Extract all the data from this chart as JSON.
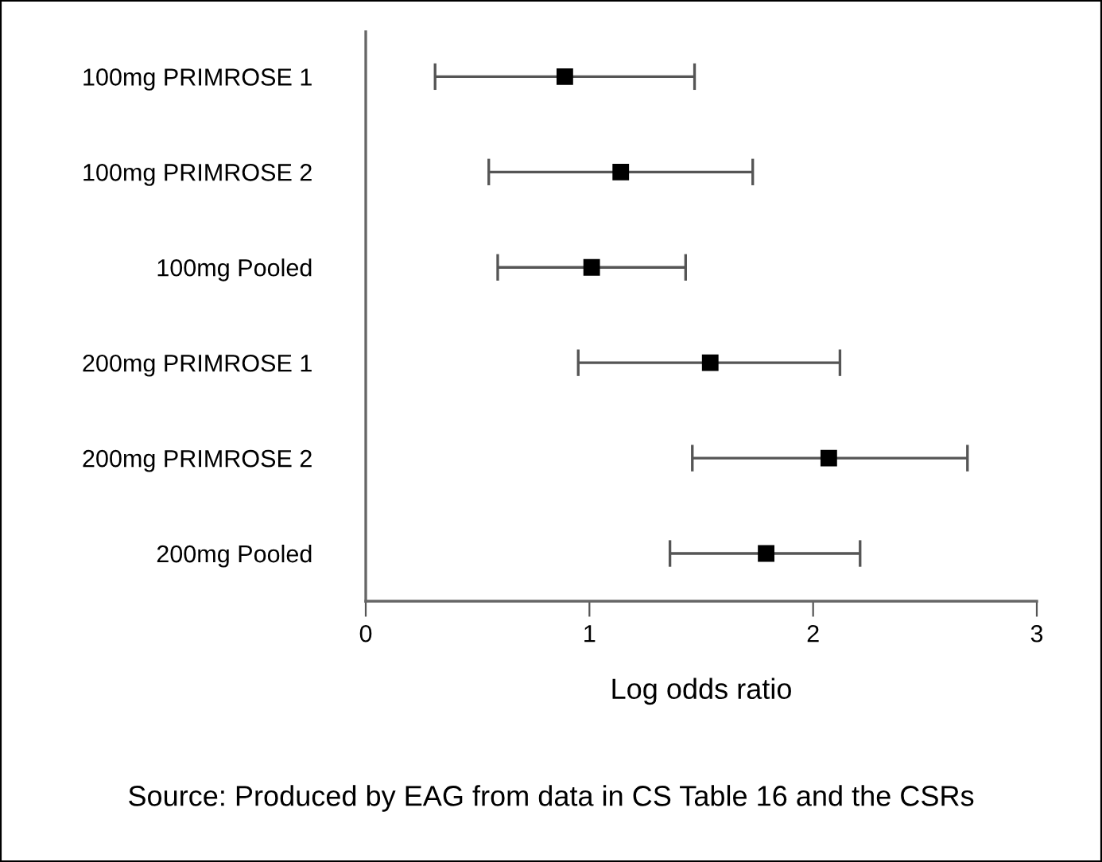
{
  "chart_data": {
    "type": "scatter",
    "orientation": "horizontal",
    "marker": "square",
    "categories": [
      "100mg PRIMROSE 1",
      "100mg PRIMROSE 2",
      "100mg Pooled",
      "200mg PRIMROSE 1",
      "200mg PRIMROSE 2",
      "200mg Pooled"
    ],
    "values": [
      0.89,
      1.14,
      1.01,
      1.54,
      2.07,
      1.79
    ],
    "errors": [
      [
        0.31,
        1.47
      ],
      [
        0.55,
        1.73
      ],
      [
        0.59,
        1.43
      ],
      [
        0.95,
        2.12
      ],
      [
        1.46,
        2.69
      ],
      [
        1.36,
        2.21
      ]
    ],
    "xlim": [
      0,
      3
    ],
    "xticks": [
      0,
      1,
      2,
      3
    ],
    "xlabel": "Log odds ratio",
    "grid": false,
    "legend": false,
    "annotations": [
      "Source: Produced by EAG from data in CS Table 16 and the CSRs"
    ]
  }
}
